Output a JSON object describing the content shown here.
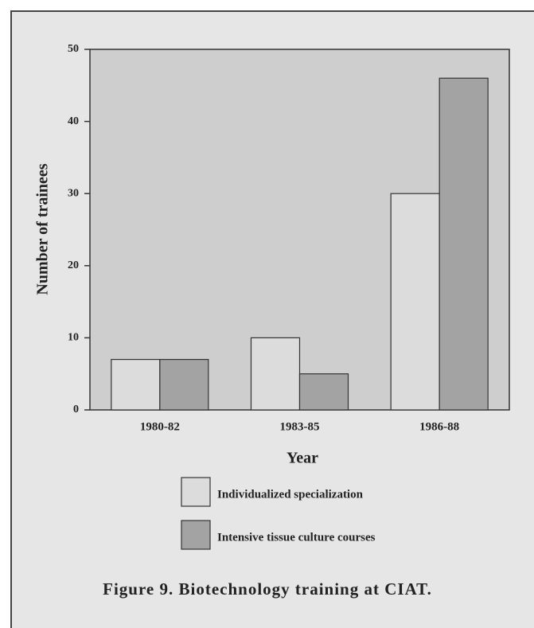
{
  "chart_data": {
    "type": "bar",
    "title": "Figure 9.  Biotechnology training at CIAT.",
    "xlabel": "Year",
    "ylabel": "Number of trainees",
    "categories": [
      "1980-82",
      "1983-85",
      "1986-88"
    ],
    "series": [
      {
        "name": "Individualized specialization",
        "color": "#dcdcdc",
        "values": [
          7,
          10,
          30
        ]
      },
      {
        "name": "Intensive tissue culture courses",
        "color": "#a3a3a3",
        "values": [
          7,
          5,
          46
        ]
      }
    ],
    "ylim": [
      0,
      50
    ],
    "yticks": [
      0,
      10,
      20,
      30,
      40,
      50
    ],
    "grid": false
  }
}
